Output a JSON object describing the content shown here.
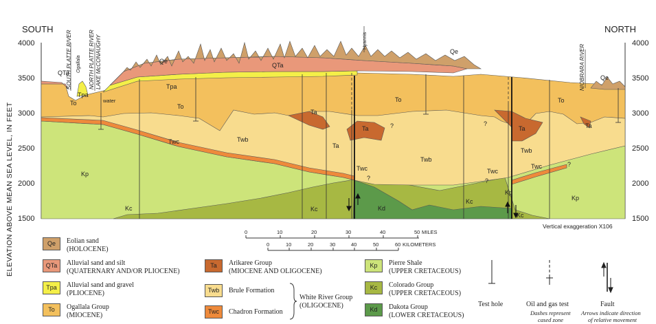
{
  "directions": {
    "south": "SOUTH",
    "north": "NORTH"
  },
  "axis": {
    "label": "ELEVATION ABOVE MEAN SEA LEVEL, IN FEET",
    "ticks": [
      "4000",
      "3500",
      "3000",
      "2500",
      "2000",
      "1500"
    ]
  },
  "places": {
    "south_platte": "SOUTH PLATTE RIVER",
    "ogallala": "Ogallala",
    "north_platte": "NORTH PLATTE RIVER",
    "lake": "LAKE McCONAUGHY",
    "water": "water",
    "hyannis": "Hyannis",
    "niobrara": "NIOBRARA RIVER"
  },
  "unit_labels": {
    "Qe": "Qe",
    "QTa": "QTa",
    "Tpa": "Tpa",
    "To": "To",
    "Ta": "Ta",
    "Twb": "Twb",
    "Twc": "Twc",
    "Kp": "Kp",
    "Kc": "Kc",
    "Kd": "Kd",
    "q": "?"
  },
  "exaggeration": "Vertical exaggeration X106",
  "scale": {
    "miles_ticks": [
      "0",
      "10",
      "20",
      "30",
      "40",
      "50"
    ],
    "miles_label": "MILES",
    "km_ticks": [
      "0",
      "10",
      "20",
      "30",
      "40",
      "50",
      "60"
    ],
    "km_label": "KILOMETERS"
  },
  "colors": {
    "Qe": "#cfa06a",
    "QTa": "#e9987a",
    "Tpa": "#f4ef48",
    "To": "#f3c05d",
    "Ta": "#c8692f",
    "Twb": "#f8dc8e",
    "Twc": "#ee8a3b",
    "Kp": "#cde47a",
    "Kc": "#a7b843",
    "Kd": "#5c9a4a"
  },
  "legend": {
    "Qe": {
      "code": "Qe",
      "name": "Eolian sand",
      "age": "(HOLOCENE)"
    },
    "QTa": {
      "code": "QTa",
      "name": "Alluvial sand and silt",
      "age": "(QUATERNARY AND/OR PLIOCENE)"
    },
    "Tpa": {
      "code": "Tpa",
      "name": "Alluvial sand and gravel",
      "age": "(PLIOCENE)"
    },
    "To": {
      "code": "To",
      "name": "Ogallala Group",
      "age": "(MIOCENE)"
    },
    "Ta": {
      "code": "Ta",
      "name": "Arikaree Group",
      "age": "(MIOCENE AND OLIGOCENE)"
    },
    "Twb": {
      "code": "Twb",
      "name": "Brule Formation"
    },
    "Twc": {
      "code": "Twc",
      "name": "Chadron Formation"
    },
    "white_river": {
      "name": "White River Group",
      "age": "(OLIGOCENE)"
    },
    "Kp": {
      "code": "Kp",
      "name": "Pierre Shale",
      "age": "(UPPER CRETACEOUS)"
    },
    "Kc": {
      "code": "Kc",
      "name": "Colorado Group",
      "age": "(UPPER CRETACEOUS)"
    },
    "Kd": {
      "code": "Kd",
      "name": "Dakota Group",
      "age": "(LOWER CRETACEOUS)"
    },
    "test_hole": "Test hole",
    "oil_gas": "Oil and gas test",
    "oil_gas_note1": "Dashes represent",
    "oil_gas_note2": "cased zone",
    "fault": "Fault",
    "fault_note1": "Arrows indicate direction",
    "fault_note2": "of relative movement"
  }
}
